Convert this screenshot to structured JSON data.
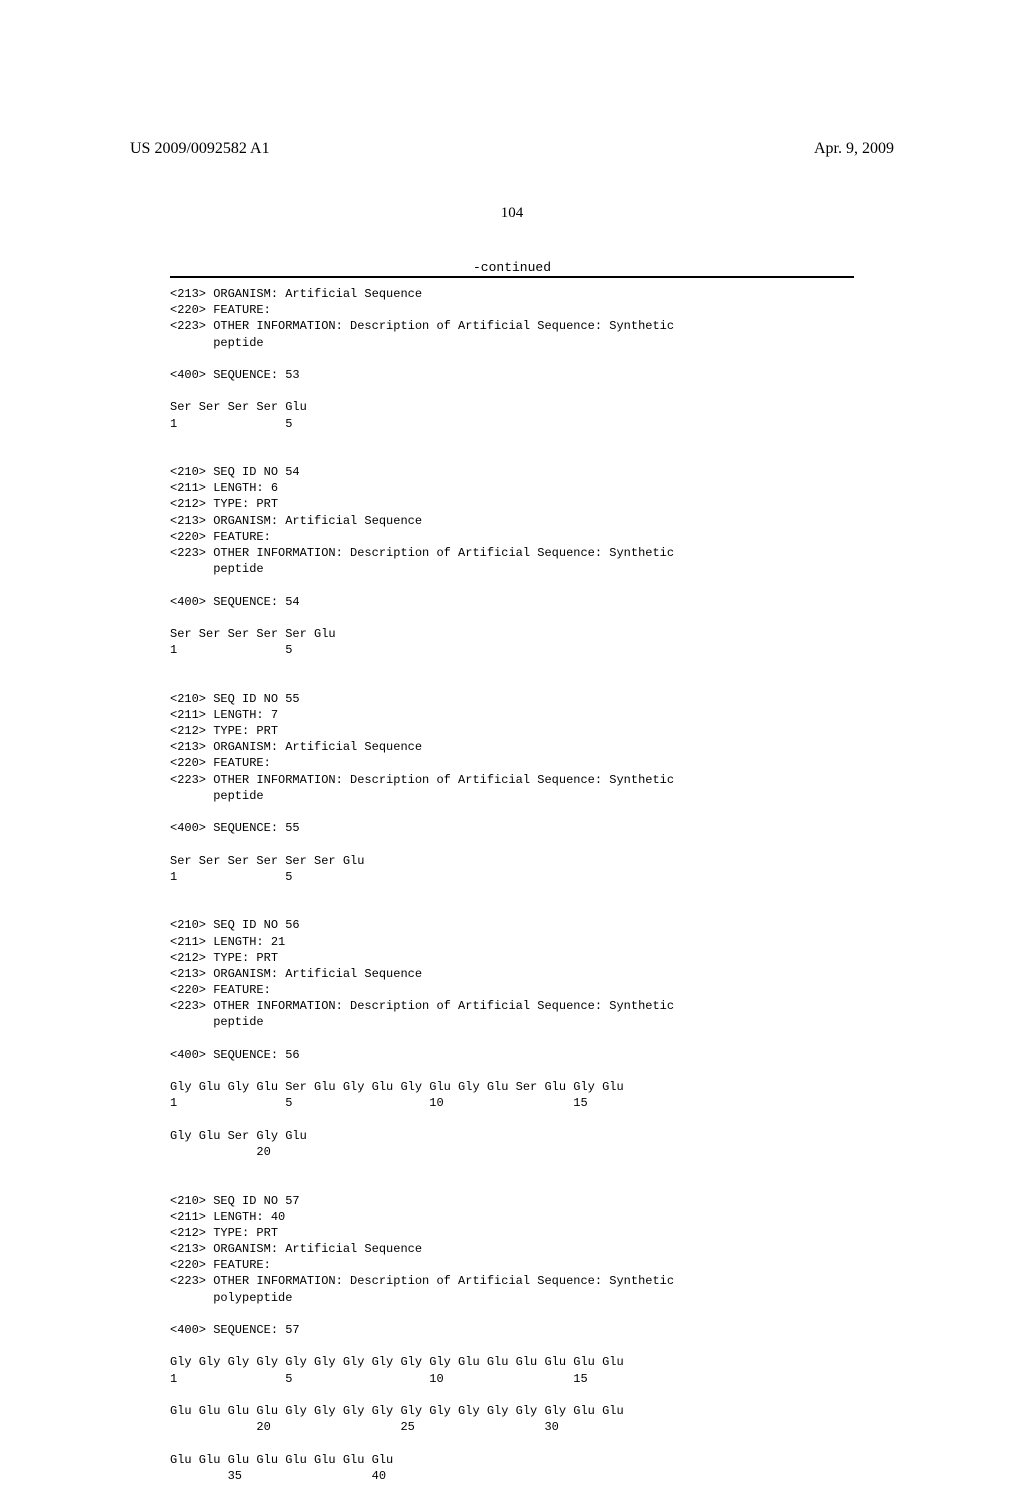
{
  "header": {
    "publication_number": "US 2009/0092582 A1",
    "publication_date": "Apr. 9, 2009"
  },
  "page_number": "104",
  "continued_label": "-continued",
  "sequences": [
    {
      "header": [
        "<213> ORGANISM: Artificial Sequence",
        "<220> FEATURE:",
        "<223> OTHER INFORMATION: Description of Artificial Sequence: Synthetic",
        "      peptide"
      ],
      "seq_line": "<400> SEQUENCE: 53",
      "residues": [
        "Ser Ser Ser Ser Glu",
        "1               5"
      ]
    },
    {
      "header": [
        "<210> SEQ ID NO 54",
        "<211> LENGTH: 6",
        "<212> TYPE: PRT",
        "<213> ORGANISM: Artificial Sequence",
        "<220> FEATURE:",
        "<223> OTHER INFORMATION: Description of Artificial Sequence: Synthetic",
        "      peptide"
      ],
      "seq_line": "<400> SEQUENCE: 54",
      "residues": [
        "Ser Ser Ser Ser Ser Glu",
        "1               5"
      ]
    },
    {
      "header": [
        "<210> SEQ ID NO 55",
        "<211> LENGTH: 7",
        "<212> TYPE: PRT",
        "<213> ORGANISM: Artificial Sequence",
        "<220> FEATURE:",
        "<223> OTHER INFORMATION: Description of Artificial Sequence: Synthetic",
        "      peptide"
      ],
      "seq_line": "<400> SEQUENCE: 55",
      "residues": [
        "Ser Ser Ser Ser Ser Ser Glu",
        "1               5"
      ]
    },
    {
      "header": [
        "<210> SEQ ID NO 56",
        "<211> LENGTH: 21",
        "<212> TYPE: PRT",
        "<213> ORGANISM: Artificial Sequence",
        "<220> FEATURE:",
        "<223> OTHER INFORMATION: Description of Artificial Sequence: Synthetic",
        "      peptide"
      ],
      "seq_line": "<400> SEQUENCE: 56",
      "residues": [
        "Gly Glu Gly Glu Ser Glu Gly Glu Gly Glu Gly Glu Ser Glu Gly Glu",
        "1               5                   10                  15",
        "",
        "Gly Glu Ser Gly Glu",
        "            20"
      ]
    },
    {
      "header": [
        "<210> SEQ ID NO 57",
        "<211> LENGTH: 40",
        "<212> TYPE: PRT",
        "<213> ORGANISM: Artificial Sequence",
        "<220> FEATURE:",
        "<223> OTHER INFORMATION: Description of Artificial Sequence: Synthetic",
        "      polypeptide"
      ],
      "seq_line": "<400> SEQUENCE: 57",
      "residues": [
        "Gly Gly Gly Gly Gly Gly Gly Gly Gly Gly Glu Glu Glu Glu Glu Glu",
        "1               5                   10                  15",
        "",
        "Glu Glu Glu Glu Gly Gly Gly Gly Gly Gly Gly Gly Gly Gly Glu Glu",
        "            20                  25                  30",
        "",
        "Glu Glu Glu Glu Glu Glu Glu Glu",
        "        35                  40"
      ]
    }
  ]
}
